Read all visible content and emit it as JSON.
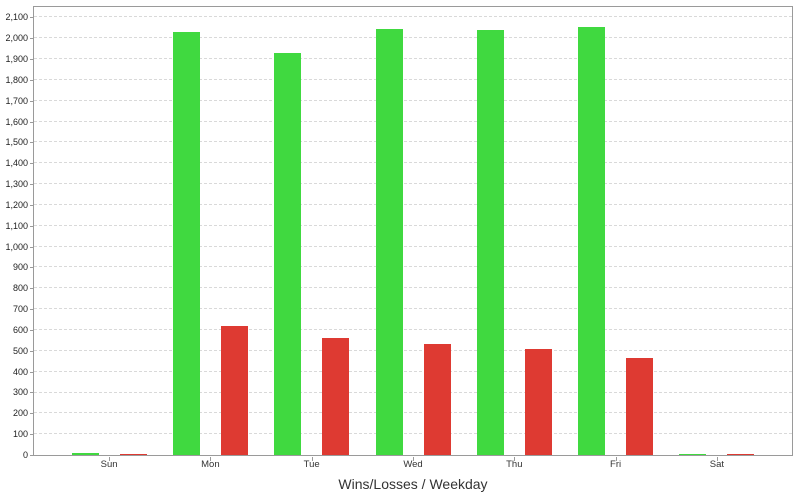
{
  "chart_data": {
    "type": "bar",
    "title": "Wins/Losses / Weekday",
    "xlabel": "",
    "ylabel": "",
    "categories": [
      "Sun",
      "Mon",
      "Tue",
      "Wed",
      "Thu",
      "Fri",
      "Sat"
    ],
    "series": [
      {
        "name": "Wins",
        "color": "#40d940",
        "values": [
          8,
          2030,
          1930,
          2045,
          2040,
          2055,
          5
        ]
      },
      {
        "name": "Losses",
        "color": "#de3a32",
        "values": [
          3,
          620,
          560,
          535,
          510,
          465,
          3
        ]
      }
    ],
    "ylim": [
      0,
      2100
    ],
    "ytick_step": 100,
    "ytick_labels": [
      "0",
      "100",
      "200",
      "300",
      "400",
      "500",
      "600",
      "700",
      "800",
      "900",
      "1,000",
      "1,100",
      "1,200",
      "1,300",
      "1,400",
      "1,500",
      "1,600",
      "1,700",
      "1,800",
      "1,900",
      "2,000",
      "2,100"
    ],
    "grid": "horizontal-dashed",
    "legend": "none",
    "colors": {
      "background": "#ffffff",
      "plot_border": "#9a9a9a",
      "gridline": "#d9d9d9",
      "tick_label": "#222222",
      "title_text": "#333333"
    }
  }
}
